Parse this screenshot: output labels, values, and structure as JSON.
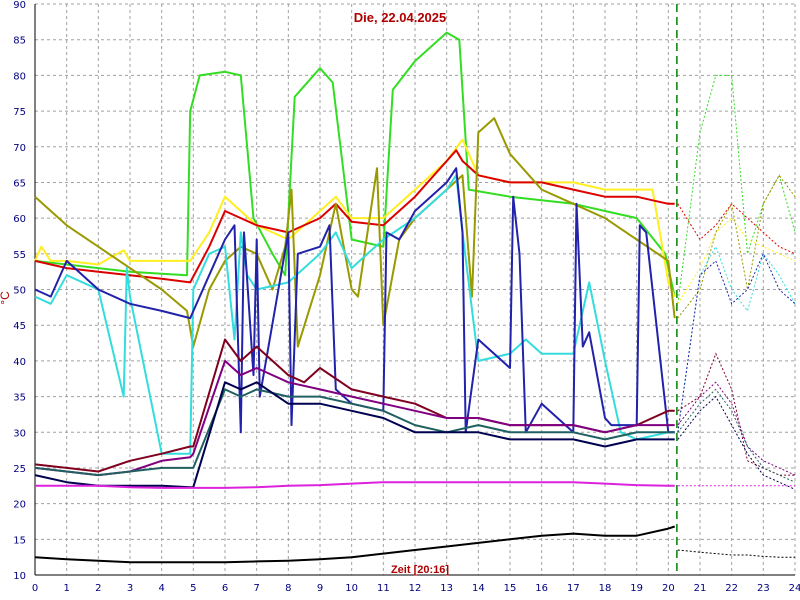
{
  "chart_data": {
    "type": "line",
    "title": "Die, 22.04.2025",
    "xlabel": "Zeit [20:16]",
    "ylabel": "°C",
    "xlim": [
      0,
      24
    ],
    "ylim": [
      10,
      90
    ],
    "xticks": [
      0,
      1,
      2,
      3,
      4,
      5,
      6,
      7,
      8,
      9,
      10,
      11,
      12,
      13,
      14,
      15,
      16,
      17,
      18,
      19,
      20,
      21,
      22,
      23,
      24
    ],
    "yticks": [
      10,
      15,
      20,
      25,
      30,
      35,
      40,
      45,
      50,
      55,
      60,
      65,
      70,
      75,
      80,
      85,
      90
    ],
    "grid": true,
    "now_marker": 20.27,
    "colors": {
      "background": "#ffffff",
      "grid": "#a0a0a0",
      "axis_text": "#000080",
      "title": "#b00000",
      "now_line": "#008000"
    },
    "series": [
      {
        "color": "#33dd22",
        "x": [
          0,
          1,
          2,
          3,
          4,
          4.8,
          4.9,
          5.2,
          6,
          6.5,
          6.9,
          7.5,
          7.9,
          8.2,
          9,
          9.4,
          10,
          11,
          11.3,
          12,
          13,
          13.4,
          13.7,
          15,
          17,
          18,
          19,
          19.9,
          20.2
        ],
        "values": [
          54,
          53.5,
          53,
          52.5,
          52.2,
          52,
          75,
          80,
          80.5,
          80,
          60,
          55,
          52,
          77,
          81,
          79,
          57,
          56,
          78,
          82,
          86,
          85,
          64,
          63,
          62,
          61,
          60,
          55,
          49
        ],
        "dotted_x": [
          20.3,
          21,
          21.5,
          22,
          22.5,
          23,
          23.5,
          24
        ],
        "dotted_values": [
          48,
          72,
          80,
          80,
          55,
          62,
          66,
          58
        ]
      },
      {
        "color": "#ffee22",
        "x": [
          0,
          0.2,
          0.5,
          1,
          2,
          2.8,
          3,
          4,
          4.9,
          5.5,
          6,
          6.5,
          7,
          7.5,
          8,
          9,
          9.5,
          10,
          11,
          12,
          13,
          13.5,
          14,
          15,
          16,
          17,
          18,
          19,
          19.5,
          20,
          20.2
        ],
        "values": [
          54,
          56,
          54,
          54,
          53.5,
          55.5,
          54,
          54,
          54,
          58,
          63,
          61,
          59,
          58,
          57,
          61,
          63,
          60,
          60,
          64,
          68,
          71,
          66,
          65,
          65,
          65,
          64,
          64,
          64,
          51,
          49
        ],
        "dotted_x": [
          20.3,
          21,
          21.5,
          22,
          22.5,
          23,
          23.5,
          24
        ],
        "dotted_values": [
          48,
          53,
          58,
          60,
          57,
          56,
          55,
          54
        ]
      },
      {
        "color": "#dd0000",
        "x": [
          0,
          1,
          2,
          3,
          4,
          4.9,
          5.5,
          6,
          6.5,
          7,
          8,
          9,
          9.5,
          10,
          11,
          12,
          13,
          13.3,
          13.5,
          14,
          15,
          16,
          17,
          18,
          19,
          19.5,
          20,
          20.2
        ],
        "values": [
          54,
          53,
          52.5,
          52,
          51.5,
          51,
          56,
          61,
          60,
          59,
          58,
          60,
          62,
          59.5,
          59,
          63,
          68,
          69.5,
          68,
          66,
          65,
          65,
          64,
          63,
          63,
          62.5,
          62,
          62
        ],
        "dotted_x": [
          20.3,
          21,
          21.5,
          22,
          22.5,
          23,
          23.5,
          24
        ],
        "dotted_values": [
          62,
          57,
          59,
          62,
          60,
          58,
          56,
          55
        ]
      },
      {
        "color": "#999900",
        "x": [
          0,
          0.5,
          1,
          2,
          3,
          4,
          4.8,
          5,
          5.5,
          6,
          6.5,
          7,
          7.5,
          7.9,
          8.1,
          8.3,
          9,
          9.5,
          10,
          10.2,
          10.8,
          11,
          11.5,
          12,
          13,
          13.5,
          13.8,
          14,
          14.5,
          15,
          16,
          17,
          18,
          19,
          20,
          20.2
        ],
        "values": [
          63,
          61,
          59,
          56,
          53,
          50,
          47,
          42,
          50,
          54,
          56,
          55,
          50,
          56,
          64,
          42,
          52,
          62,
          50,
          49,
          67,
          45,
          57,
          60,
          64,
          66,
          49,
          72,
          74,
          69,
          64,
          62,
          60,
          57,
          54,
          46
        ],
        "dotted_x": [
          20.3,
          21,
          21.5,
          22,
          22.5,
          23,
          23.5,
          24
        ],
        "dotted_values": [
          46,
          50,
          58,
          62,
          50,
          62,
          66,
          63
        ]
      },
      {
        "color": "#33dddd",
        "x": [
          0,
          0.5,
          1,
          2,
          2.8,
          2.9,
          3,
          4,
          4.9,
          5,
          5.5,
          6,
          6.3,
          6.5,
          6.7,
          7,
          8,
          9,
          9.5,
          10,
          11,
          12,
          13,
          13.3,
          13.5,
          14,
          15,
          15.5,
          16,
          17,
          17.5,
          18,
          18.5,
          19,
          20,
          20.2
        ],
        "values": [
          49,
          48,
          52,
          50,
          35,
          53,
          49,
          27,
          27,
          50,
          55,
          56,
          43,
          58,
          52,
          50,
          51,
          55,
          58,
          53,
          57,
          60,
          64,
          66,
          58,
          40,
          41,
          43,
          41,
          41,
          51,
          40,
          30,
          29,
          30,
          30
        ],
        "dotted_x": [
          20.3,
          21,
          21.5,
          22,
          22.5,
          23,
          23.5,
          24
        ],
        "dotted_values": [
          30,
          52,
          56,
          50,
          47,
          55,
          52,
          48
        ]
      },
      {
        "color": "#2222aa",
        "x": [
          0,
          0.5,
          1,
          2,
          3,
          4,
          4.9,
          5.5,
          6,
          6.3,
          6.5,
          6.6,
          6.9,
          7,
          7.1,
          8,
          8.1,
          8.3,
          9,
          9.3,
          9.5,
          10,
          11,
          11.1,
          11.5,
          12,
          13,
          13.3,
          13.5,
          13.6,
          14,
          15,
          15.1,
          15.3,
          15.5,
          16,
          17,
          17.1,
          17.3,
          17.5,
          18,
          18.2,
          19,
          19.1,
          19.3,
          20,
          20.2
        ],
        "values": [
          50,
          49,
          54,
          50,
          48,
          47,
          46,
          52,
          57,
          59,
          30,
          58,
          38,
          57,
          35,
          58,
          31,
          55,
          56,
          59,
          36,
          34,
          33,
          58,
          57,
          61,
          65,
          67,
          58,
          30,
          43,
          39,
          63,
          55,
          30,
          34,
          30,
          62,
          42,
          44,
          32,
          31,
          31,
          59,
          58,
          30,
          30
        ],
        "dotted_x": [
          20.3,
          21,
          21.5,
          22,
          22.5,
          23,
          23.5,
          24
        ],
        "dotted_values": [
          30,
          52,
          54,
          48,
          50,
          55,
          50,
          48
        ]
      },
      {
        "color": "#800020",
        "x": [
          0,
          1,
          2,
          3,
          4,
          4.9,
          5,
          6,
          6.5,
          7,
          8,
          8.5,
          9,
          10,
          11,
          12,
          13,
          14,
          15,
          16,
          17,
          18,
          19,
          20,
          20.2
        ],
        "values": [
          25.5,
          25,
          24.5,
          26,
          27,
          28,
          28,
          43,
          40,
          42,
          38,
          37,
          39,
          36,
          35,
          34,
          32,
          32,
          31,
          31,
          31,
          30,
          31,
          33,
          33
        ],
        "dotted_x": [
          20.3,
          21,
          21.5,
          22,
          22.5,
          23,
          23.5,
          24
        ],
        "dotted_values": [
          33,
          35,
          41,
          36,
          26,
          25,
          24,
          24
        ]
      },
      {
        "color": "#800080",
        "x": [
          0,
          1,
          2,
          3,
          4,
          4.9,
          5,
          6,
          6.5,
          7,
          8,
          9,
          10,
          11,
          12,
          13,
          14,
          15,
          16,
          17,
          18,
          19,
          20,
          20.2
        ],
        "values": [
          25,
          24.5,
          24,
          24.5,
          26,
          26.5,
          27,
          40,
          38,
          39,
          37,
          36,
          35,
          34,
          33,
          32,
          32,
          31,
          31,
          31,
          30,
          31,
          31,
          31
        ],
        "dotted_x": [
          20.3,
          21,
          21.5,
          22,
          22.5,
          23,
          23.5,
          24
        ],
        "dotted_values": [
          31,
          35,
          37,
          34,
          28,
          26,
          25,
          24
        ]
      },
      {
        "color": "#206060",
        "x": [
          0,
          1,
          2,
          3,
          4,
          4.9,
          5,
          6,
          6.5,
          7,
          8,
          9,
          10,
          11,
          12,
          13,
          14,
          15,
          16,
          17,
          18,
          19,
          20,
          20.2
        ],
        "values": [
          25,
          24.5,
          24,
          24.5,
          25,
          25,
          25,
          36,
          35,
          36,
          35,
          35,
          34,
          33,
          31,
          30,
          31,
          30,
          30,
          30,
          29,
          30,
          30,
          30
        ],
        "dotted_x": [
          20.3,
          21,
          21.5,
          22,
          22.5,
          23,
          23.5,
          24
        ],
        "dotted_values": [
          30,
          34,
          36,
          33,
          28,
          25,
          24,
          23
        ]
      },
      {
        "color": "#000050",
        "x": [
          0,
          1,
          2,
          3,
          4,
          4.9,
          5,
          6,
          6.5,
          7,
          8,
          9,
          10,
          11,
          12,
          13,
          14,
          15,
          16,
          17,
          18,
          19,
          20,
          20.2
        ],
        "values": [
          24,
          23,
          22.5,
          22.5,
          22.5,
          22.3,
          22.3,
          37,
          36,
          37,
          34,
          34,
          33,
          32,
          30,
          30,
          30,
          29,
          29,
          29,
          28,
          29,
          29,
          29
        ],
        "dotted_x": [
          20.3,
          21,
          21.5,
          22,
          22.5,
          23,
          23.5,
          24
        ],
        "dotted_values": [
          29,
          33,
          35,
          31,
          27,
          24,
          23,
          22
        ]
      },
      {
        "color": "#dd22dd",
        "x": [
          0,
          1,
          2,
          3,
          4,
          5,
          6,
          7,
          8,
          9,
          10,
          11,
          12,
          13,
          14,
          15,
          16,
          17,
          18,
          19,
          20,
          20.2
        ],
        "values": [
          22.5,
          22.5,
          22.5,
          22.3,
          22.2,
          22.2,
          22.2,
          22.3,
          22.5,
          22.6,
          22.8,
          23,
          23,
          23,
          23,
          23,
          23,
          23,
          22.8,
          22.6,
          22.5,
          22.5
        ],
        "dotted_x": [
          20.3,
          21,
          21.5,
          22,
          22.5,
          23,
          23.5,
          24
        ],
        "dotted_values": [
          22.5,
          22.5,
          22.5,
          22.5,
          22.5,
          22.5,
          22.5,
          22.5
        ]
      },
      {
        "color": "#000000",
        "x": [
          0,
          1,
          2,
          3,
          4,
          5,
          6,
          7,
          8,
          9,
          10,
          11,
          12,
          13,
          14,
          15,
          16,
          17,
          18,
          19,
          20,
          20.2
        ],
        "values": [
          12.5,
          12.2,
          12,
          11.8,
          11.8,
          11.8,
          11.8,
          11.9,
          12,
          12.2,
          12.5,
          13,
          13.5,
          14,
          14.5,
          15,
          15.5,
          15.8,
          15.5,
          15.5,
          16.5,
          16.8
        ],
        "dotted_x": [
          20.3,
          21,
          21.5,
          22,
          22.5,
          23,
          23.5,
          24
        ],
        "dotted_values": [
          13.5,
          13.2,
          13,
          12.8,
          12.8,
          12.6,
          12.5,
          12.5
        ]
      }
    ]
  }
}
